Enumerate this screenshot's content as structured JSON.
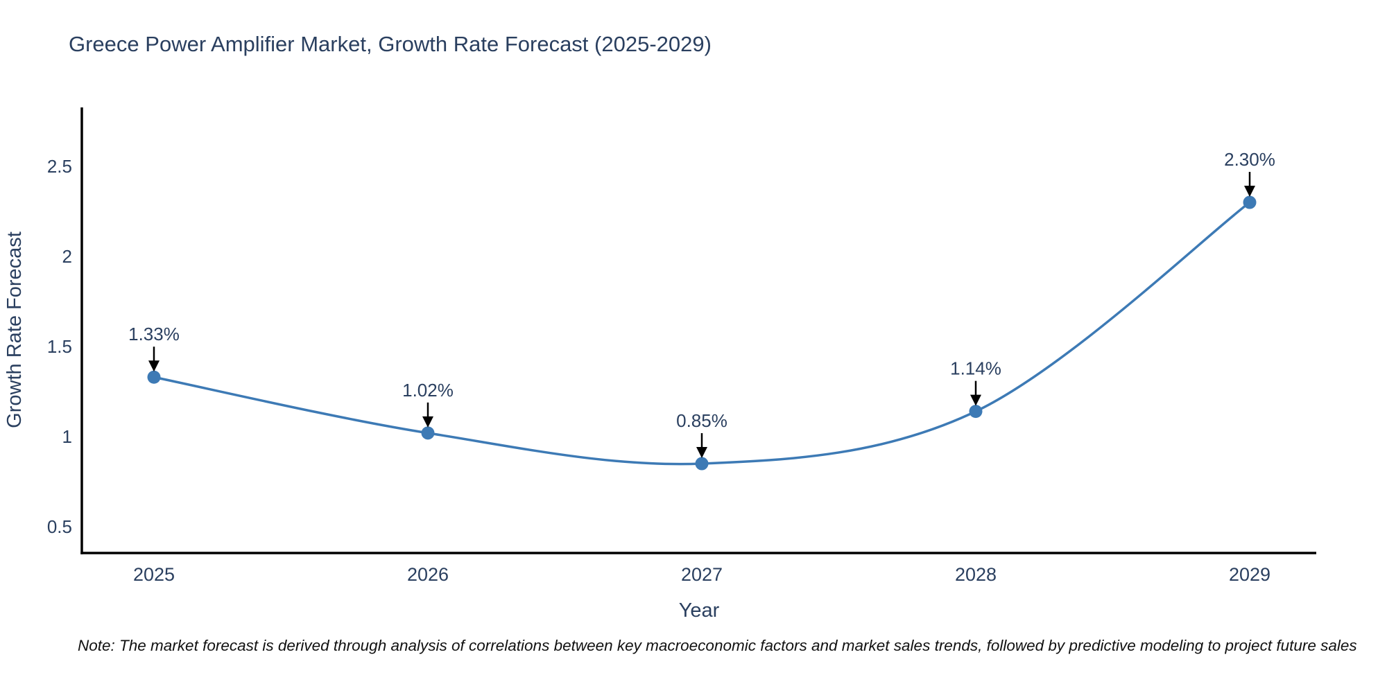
{
  "chart_data": {
    "type": "line",
    "title": "Greece Power Amplifier Market, Growth Rate Forecast (2025-2029)",
    "x": [
      "2025",
      "2026",
      "2027",
      "2028",
      "2029"
    ],
    "y": [
      1.33,
      1.02,
      0.85,
      1.14,
      2.3
    ],
    "point_labels": [
      "1.33%",
      "1.02%",
      "0.85%",
      "1.14%",
      "2.30%"
    ],
    "xlabel": "Year",
    "ylabel": "Growth Rate Forecast",
    "yticks": [
      0.5,
      1,
      1.5,
      2,
      2.5
    ],
    "ytick_labels": [
      "0.5",
      "1",
      "1.5",
      "2",
      "2.5"
    ],
    "ylim": [
      0.35,
      2.83
    ],
    "line_shape": "spline",
    "grid": false,
    "legend": "none",
    "series_color": "#3d7ab5",
    "marker_color": "#3d7ab5",
    "annotation_arrow_color": "#000000"
  },
  "colors": {
    "chart_text": "#2a3f5f",
    "axis_line": "#000000",
    "note_text": "#111111"
  },
  "footer": {
    "note": "Note: The market forecast is derived through analysis of correlations between key macroeconomic factors and market sales trends, followed by predictive modeling to project future sales"
  }
}
